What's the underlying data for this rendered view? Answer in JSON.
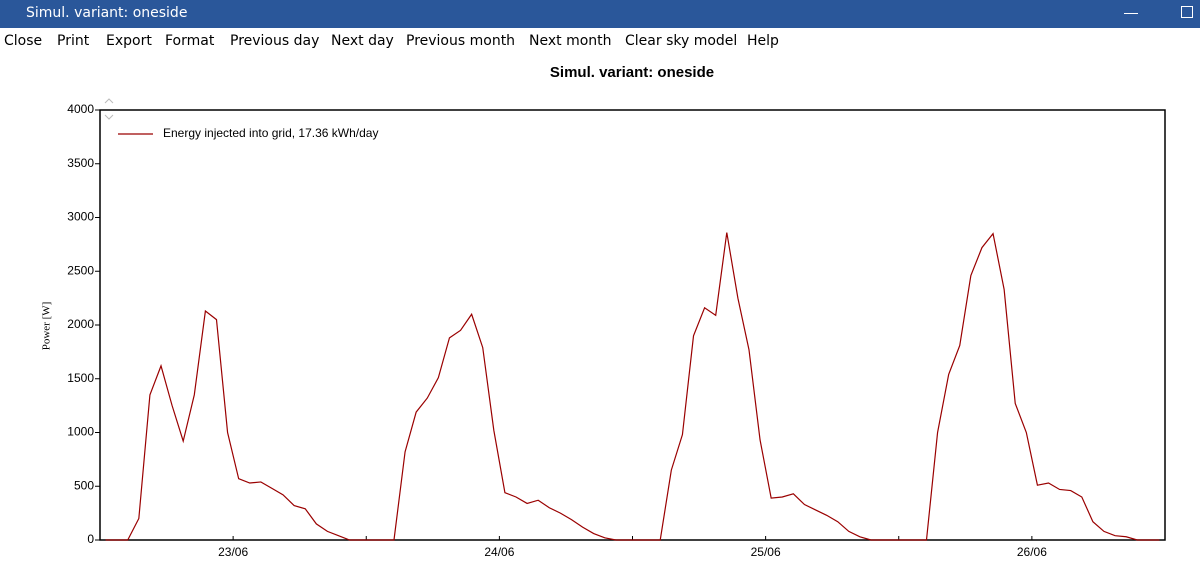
{
  "window": {
    "title": "Simul. variant: oneside"
  },
  "menu": [
    "Close",
    "Print",
    "Export",
    "Format",
    "Previous day",
    "Next day",
    "Previous month",
    "Next month",
    "Clear sky model",
    "Help"
  ],
  "chart_data": {
    "type": "line",
    "title": "Simul. variant: oneside",
    "y_label": "Power  [W]",
    "xlim": [
      0,
      96
    ],
    "xticks": [
      {
        "value": 12,
        "label": "23/06"
      },
      {
        "value": 36,
        "label": "24/06"
      },
      {
        "value": 60,
        "label": "25/06"
      },
      {
        "value": 84,
        "label": "26/06"
      }
    ],
    "xminor_ticks": [
      24,
      48,
      72
    ],
    "ylim": [
      0,
      4000
    ],
    "yticks": [
      0,
      500,
      1000,
      1500,
      2000,
      2500,
      3000,
      3500,
      4000
    ],
    "legend": "top-left",
    "x": [
      0.5,
      1.5,
      2.5,
      3.5,
      4.5,
      5.5,
      6.5,
      7.5,
      8.5,
      9.5,
      10.5,
      11.5,
      12.5,
      13.5,
      14.5,
      15.5,
      16.5,
      17.5,
      18.5,
      19.5,
      20.5,
      21.5,
      22.5,
      23.5,
      24.5,
      25.5,
      26.5,
      27.5,
      28.5,
      29.5,
      30.5,
      31.5,
      32.5,
      33.5,
      34.5,
      35.5,
      36.5,
      37.5,
      38.5,
      39.5,
      40.5,
      41.5,
      42.5,
      43.5,
      44.5,
      45.5,
      46.5,
      47.5,
      48.5,
      49.5,
      50.5,
      51.5,
      52.5,
      53.5,
      54.5,
      55.5,
      56.5,
      57.5,
      58.5,
      59.5,
      60.5,
      61.5,
      62.5,
      63.5,
      64.5,
      65.5,
      66.5,
      67.5,
      68.5,
      69.5,
      70.5,
      71.5,
      72.5,
      73.5,
      74.5,
      75.5,
      76.5,
      77.5,
      78.5,
      79.5,
      80.5,
      81.5,
      82.5,
      83.5,
      84.5,
      85.5,
      86.5,
      87.5,
      88.5,
      89.5,
      90.5,
      91.5,
      92.5,
      93.5,
      94.5,
      95.5
    ],
    "series": [
      {
        "name": "Energy injected into grid,  17.36 kWh/day",
        "color": "#9a0000",
        "values": [
          0,
          0,
          0,
          200,
          1350,
          1620,
          1250,
          920,
          1350,
          2130,
          2050,
          1000,
          570,
          530,
          540,
          480,
          420,
          320,
          290,
          150,
          80,
          40,
          0,
          0,
          0,
          0,
          0,
          820,
          1190,
          1320,
          1510,
          1880,
          1950,
          2100,
          1790,
          1020,
          440,
          400,
          340,
          370,
          300,
          250,
          190,
          120,
          60,
          20,
          0,
          0,
          0,
          0,
          0,
          650,
          980,
          1900,
          2160,
          2090,
          2860,
          2250,
          1770,
          930,
          390,
          400,
          430,
          330,
          280,
          230,
          170,
          80,
          30,
          0,
          0,
          0,
          0,
          0,
          0,
          1000,
          1540,
          1810,
          2460,
          2720,
          2850,
          2330,
          1270,
          1000,
          510,
          530,
          470,
          460,
          400,
          170,
          80,
          40,
          30,
          0,
          0,
          0
        ]
      }
    ]
  }
}
